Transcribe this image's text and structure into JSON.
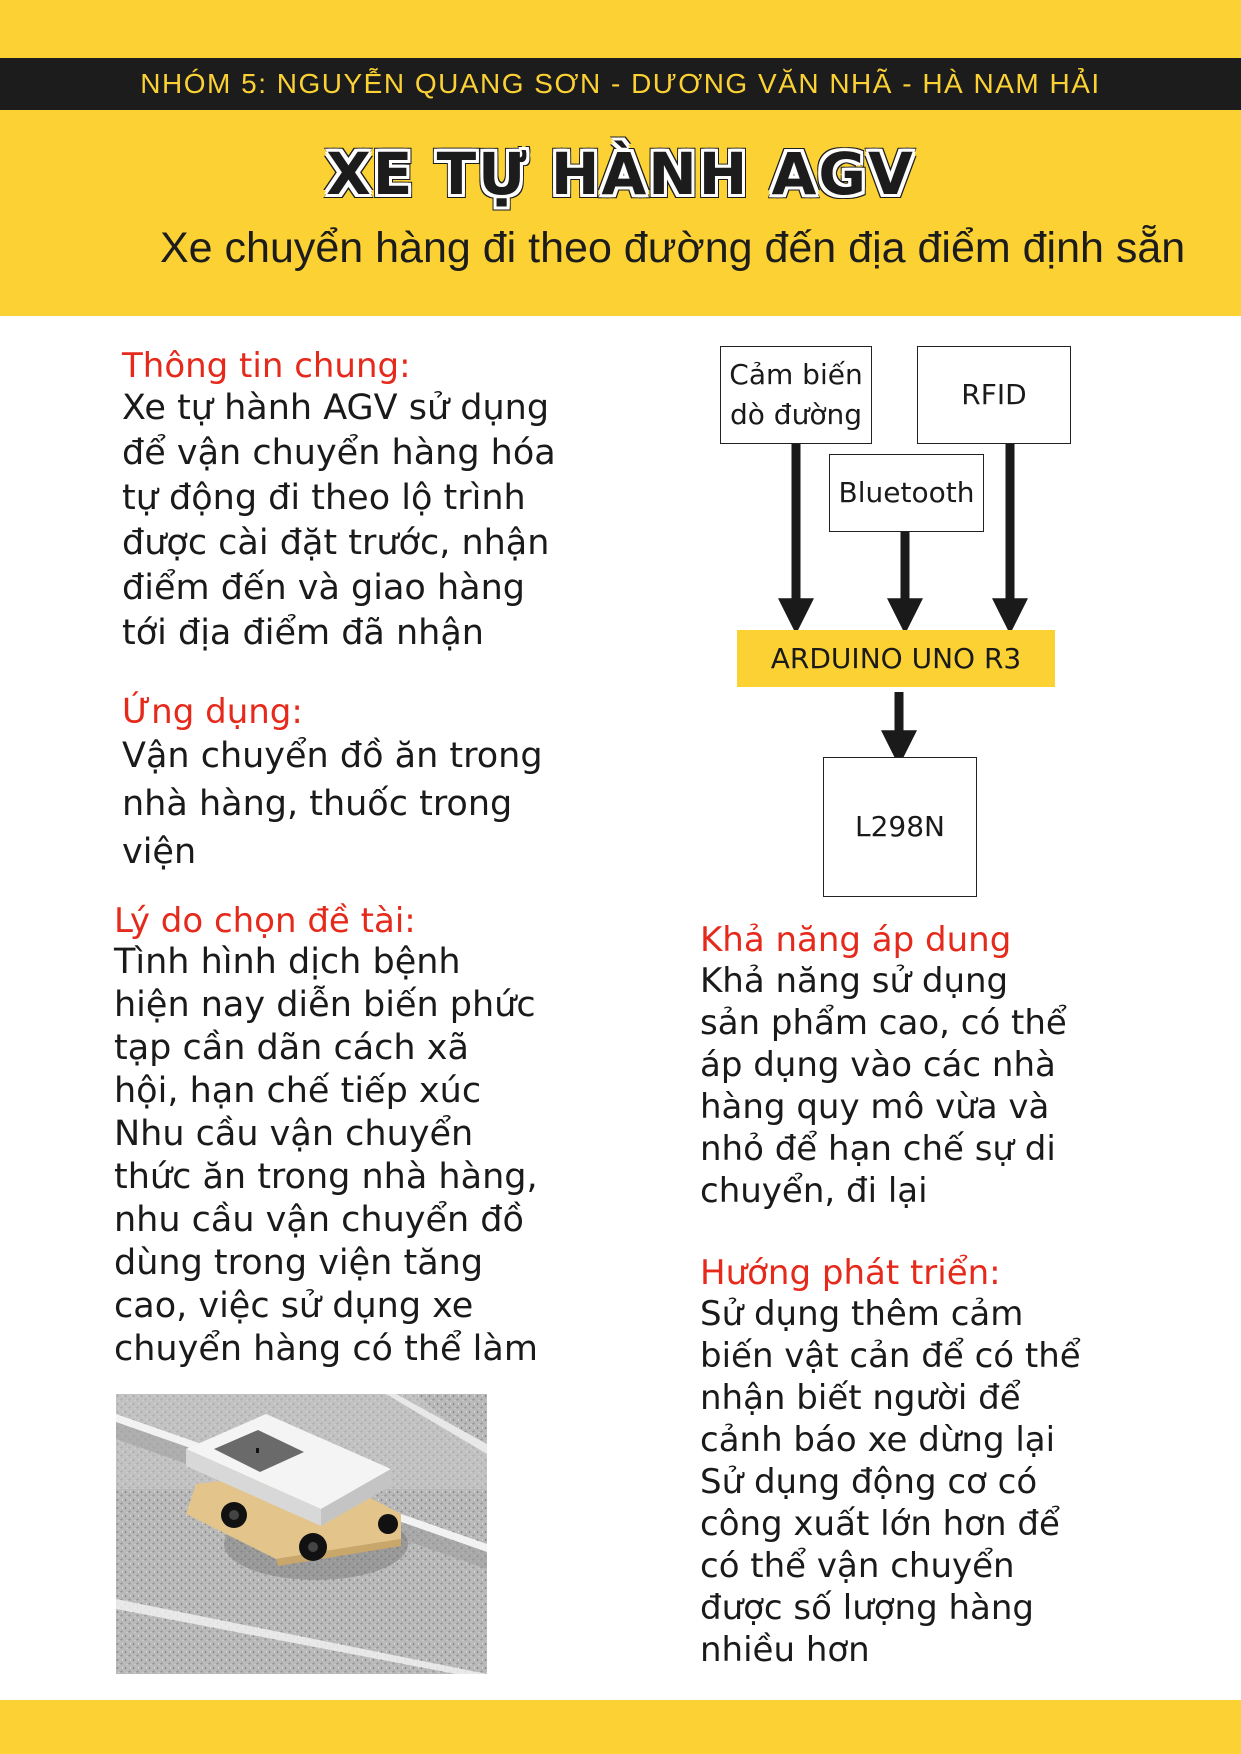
{
  "header": {
    "group_line": "NHÓM 5: NGUYỄN QUANG SƠN - DƯƠNG VĂN NHÃ - HÀ NAM HẢI",
    "title": "XE TỰ HÀNH AGV",
    "subtitle": "Xe chuyển hàng đi theo đường đến địa điểm định sẵn"
  },
  "left": {
    "general": {
      "heading": "Thông tin chung:",
      "lines": [
        "Xe tự hành AGV sử dụng",
        "để vận chuyển hàng hóa",
        "tự động đi theo lộ trình",
        "được cài đặt trước, nhận",
        "điểm đến và giao hàng",
        "tới địa điểm đã nhận"
      ]
    },
    "application": {
      "heading": "Ứng dụng:",
      "lines": [
        "Vận chuyển đồ ăn trong",
        "nhà hàng, thuốc trong",
        "viện"
      ]
    },
    "reason": {
      "heading": "Lý do chọn đề tài:",
      "lines": [
        " Tình hình dịch bệnh",
        "hiện nay diễn biến phức",
        "tạp cần dãn cách xã",
        "hội, hạn chế tiếp xúc",
        "Nhu cầu vận chuyển",
        "thức ăn trong nhà hàng,",
        "nhu cầu vận chuyển đồ",
        "dùng trong viện tăng",
        "cao, việc sử dụng xe",
        "chuyển hàng có thể làm"
      ]
    }
  },
  "diagram": {
    "sensor_line1": "Cảm biến",
    "sensor_line2": "dò đường",
    "rfid": "RFID",
    "bluetooth": "Bluetooth",
    "controller": "ARDUINO UNO R3",
    "driver": "L298N"
  },
  "right": {
    "capability": {
      "heading": "Khả năng áp dung",
      "lines": [
        " Khả năng sử dụng",
        "sản phẩm cao, có thể",
        "áp dụng vào các nhà",
        "hàng quy mô vừa và",
        "nhỏ để hạn chế sự di",
        "chuyển, đi lại"
      ]
    },
    "development": {
      "heading": "Hướng phát triển:",
      "lines": [
        "Sử dụng thêm cảm",
        "biến vật cản để có thể",
        "nhận biết người để",
        "cảnh báo xe dừng lại",
        "Sử dụng động cơ có",
        "công xuất lớn hơn để",
        "có thể vận chuyển",
        "được số lượng hàng",
        "nhiều hơn"
      ]
    }
  },
  "colors": {
    "accent_yellow": "#fbd134",
    "heading_red": "#e52a1c",
    "dark_bar": "#1c1c1c"
  }
}
